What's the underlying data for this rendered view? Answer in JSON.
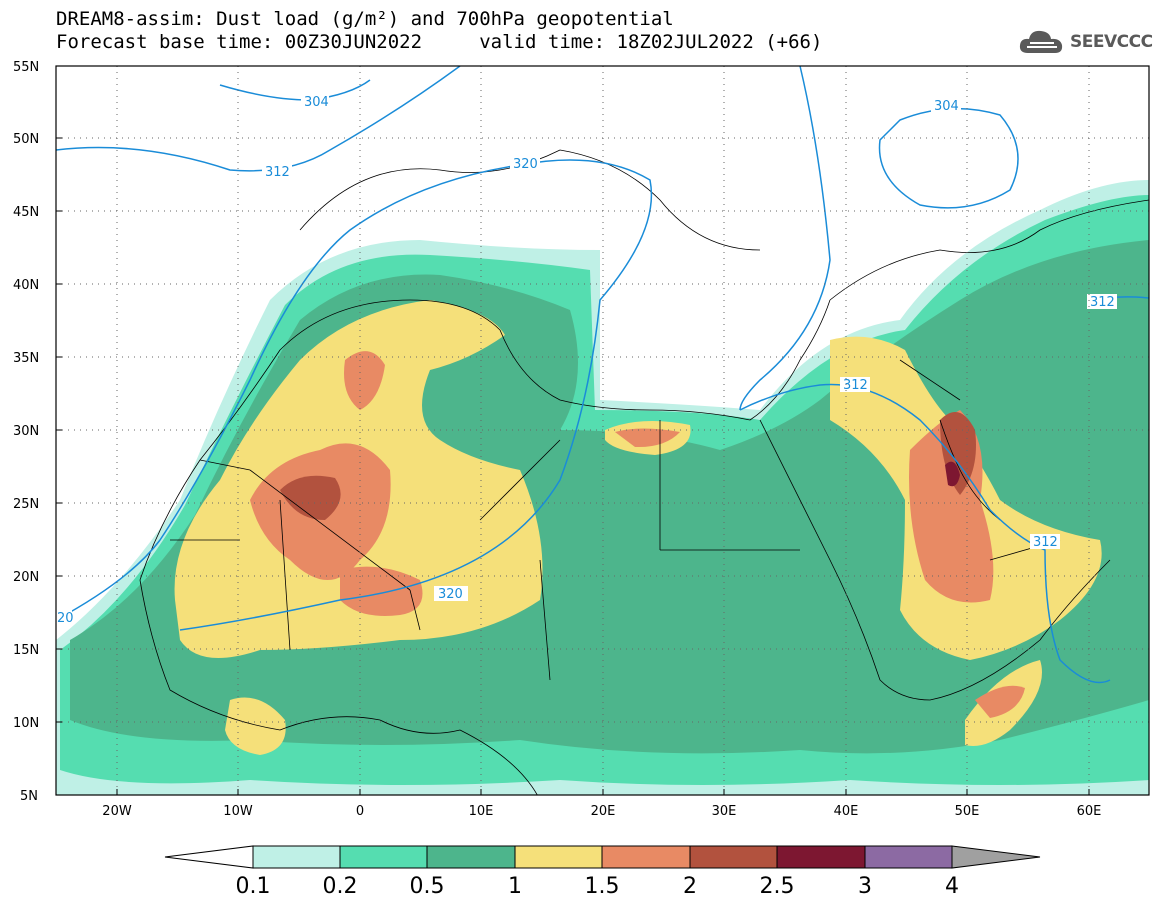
{
  "title_line1": "DREAM8-assim: Dust load (g/m²) and 700hPa geopotential",
  "title_line2": "Forecast base time: 00Z30JUN2022     valid time: 18Z02JUL2022 (+66)",
  "logo": {
    "text": "SEEVCCC",
    "icon": "cloud-icon"
  },
  "lat_labels": [
    "55N",
    "50N",
    "45N",
    "40N",
    "35N",
    "30N",
    "25N",
    "20N",
    "15N",
    "10N",
    "5N"
  ],
  "lon_labels": [
    "20W",
    "10W",
    "0",
    "10E",
    "20E",
    "30E",
    "40E",
    "50E",
    "60E"
  ],
  "colorbar": {
    "labels": [
      "0.1",
      "0.2",
      "0.5",
      "1",
      "1.5",
      "2",
      "2.5",
      "3",
      "4"
    ],
    "colors": [
      "#bff0e6",
      "#55ddb0",
      "#4db58c",
      "#f5e07a",
      "#e88a64",
      "#b2523e",
      "#7d1731",
      "#8c6aa3"
    ],
    "over_color": "#a0a0a0"
  },
  "isolines": {
    "color": "#1a8cd8",
    "labels": [
      "304",
      "312",
      "320",
      "312",
      "320",
      "304",
      "312",
      "312",
      "20"
    ]
  }
}
